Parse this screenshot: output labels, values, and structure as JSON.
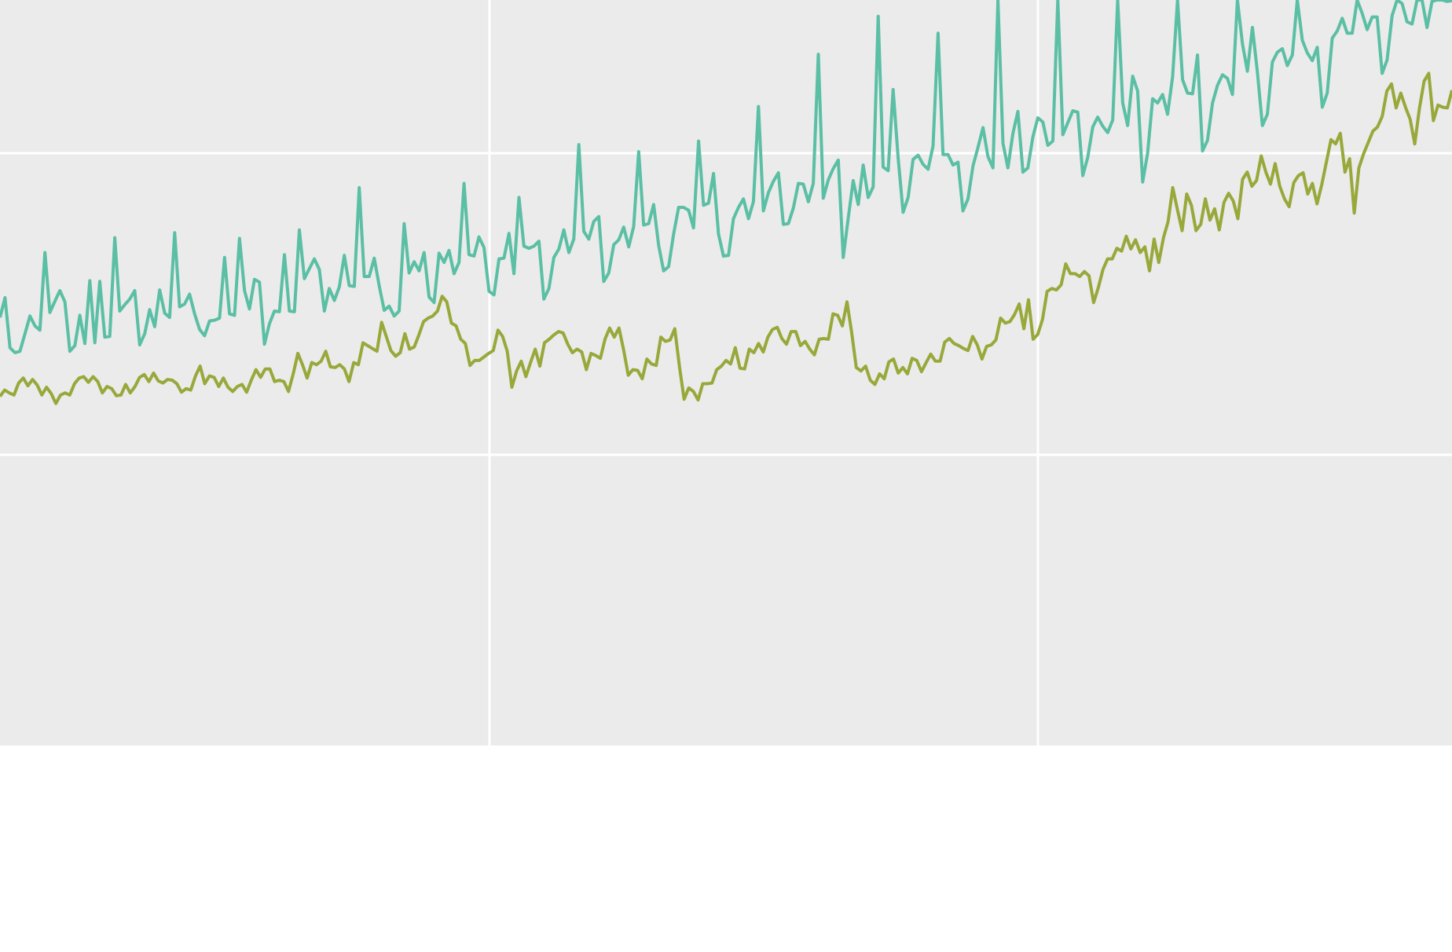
{
  "chart_data": {
    "type": "line",
    "title": "",
    "xlabel": "",
    "ylabel": "",
    "grid": true,
    "legend": "none",
    "x_range": [
      0,
      264
    ],
    "y_range": [
      0,
      100
    ],
    "background_color": "#EBEBEB",
    "gridline_color": "#FFFFFF",
    "series": [
      {
        "color": "#5ABFA4",
        "values": [
          55.0,
          57.8,
          50.7,
          50.0,
          50.2,
          52.7,
          55.2,
          53.8,
          53.2,
          64.2,
          55.7,
          57.3,
          58.8,
          57.2,
          50.2,
          51.0,
          55.3,
          51.3,
          60.2,
          51.4,
          60.1,
          52.2,
          52.3,
          66.3,
          55.9,
          56.8,
          57.6,
          58.8,
          51.1,
          52.7,
          56.1,
          53.7,
          58.9,
          55.6,
          55.0,
          67.0,
          56.5,
          56.9,
          58.3,
          55.5,
          53.3,
          52.4,
          54.5,
          54.6,
          54.9,
          63.5,
          55.5,
          55.3,
          66.2,
          58.8,
          56.2,
          60.4,
          60.0,
          51.2,
          54.1,
          55.9,
          55.8,
          63.9,
          55.9,
          55.8,
          67.4,
          60.5,
          61.9,
          63.3,
          61.8,
          55.9,
          59.1,
          57.4,
          59.3,
          63.8,
          59.5,
          59.4,
          73.4,
          60.8,
          60.8,
          63.4,
          59.5,
          56.0,
          56.6,
          55.2,
          55.9,
          68.3,
          61.3,
          62.9,
          61.6,
          64.2,
          57.9,
          57.1,
          64.1,
          62.8,
          64.5,
          61.2,
          62.8,
          74.0,
          63.9,
          63.7,
          66.4,
          64.9,
          58.7,
          58.2,
          63.3,
          63.4,
          66.9,
          61.2,
          72.0,
          65.1,
          64.8,
          65.1,
          65.8,
          57.6,
          59.1,
          63.5,
          64.7,
          67.4,
          64.2,
          66.1,
          79.5,
          67.2,
          66.1,
          68.6,
          69.3,
          60.1,
          61.3,
          65.3,
          66.0,
          67.8,
          65.0,
          67.9,
          78.5,
          68.1,
          68.3,
          71.0,
          65.2,
          61.6,
          62.2,
          66.8,
          70.6,
          70.6,
          70.2,
          67.7,
          80.0,
          70.9,
          71.2,
          75.4,
          66.8,
          63.7,
          63.8,
          69.0,
          70.6,
          71.8,
          69.0,
          71.4,
          84.9,
          70.1,
          72.7,
          74.3,
          75.5,
          68.2,
          68.3,
          70.5,
          74.0,
          73.9,
          71.4,
          74.0,
          92.3,
          71.9,
          74.5,
          76.1,
          77.3,
          63.5,
          69.1,
          74.4,
          71.0,
          76.6,
          72.0,
          73.5,
          97.7,
          76.3,
          75.8,
          87.3,
          77.6,
          69.9,
          72.0,
          77.4,
          78.0,
          76.7,
          76.0,
          79.3,
          95.3,
          78.1,
          78.1,
          76.6,
          77.0,
          70.1,
          71.8,
          76.5,
          79.1,
          81.9,
          77.8,
          76.2,
          100.0,
          79.7,
          76.2,
          81.1,
          84.2,
          75.6,
          76.2,
          80.6,
          83.3,
          82.7,
          79.4,
          80.0,
          100.0,
          80.9,
          82.6,
          84.3,
          84.1,
          75.1,
          77.7,
          82.0,
          83.4,
          82.1,
          81.2,
          83.0,
          100.0,
          85.4,
          82.2,
          89.2,
          87.1,
          74.2,
          78.3,
          86.0,
          85.4,
          86.6,
          83.8,
          89.1,
          100.0,
          88.7,
          86.8,
          86.7,
          92.2,
          78.6,
          80.1,
          85.4,
          87.9,
          89.4,
          88.9,
          86.6,
          100.0,
          93.8,
          89.9,
          96.1,
          89.8,
          82.2,
          83.8,
          91.2,
          92.6,
          93.1,
          90.7,
          92.2,
          100.0,
          94.3,
          92.5,
          91.4,
          93.3,
          84.8,
          86.8,
          94.6,
          95.6,
          97.4,
          95.3,
          95.3,
          100.0,
          98.1,
          95.8,
          97.6,
          97.6,
          89.6,
          91.5,
          97.8,
          100.0,
          99.5,
          96.9,
          96.6,
          100.0,
          100.0,
          96.1,
          99.8,
          100.0,
          100.0,
          99.8,
          99.9
        ]
      },
      {
        "color": "#98A83A",
        "values": [
          43.8,
          44.7,
          44.3,
          44.0,
          45.7,
          46.4,
          45.3,
          46.2,
          45.4,
          44.0,
          45.1,
          44.2,
          42.8,
          44.0,
          44.3,
          44.0,
          45.6,
          46.4,
          46.6,
          45.8,
          46.6,
          45.9,
          44.3,
          45.2,
          44.9,
          43.9,
          44.0,
          45.5,
          44.3,
          45.2,
          46.5,
          46.9,
          45.9,
          47.1,
          46.0,
          45.7,
          46.2,
          46.1,
          45.6,
          44.4,
          44.9,
          44.7,
          46.7,
          48.1,
          45.6,
          46.7,
          46.5,
          45.2,
          46.4,
          45.1,
          44.5,
          45.2,
          45.5,
          44.4,
          46.1,
          47.6,
          46.5,
          47.7,
          47.7,
          45.9,
          46.1,
          45.9,
          44.5,
          47.0,
          49.9,
          48.3,
          46.4,
          48.6,
          48.3,
          48.8,
          50.2,
          48.0,
          47.9,
          48.3,
          47.7,
          45.9,
          48.6,
          48.3,
          51.4,
          51.0,
          50.6,
          50.2,
          54.3,
          52.3,
          50.3,
          49.5,
          50.0,
          52.7,
          50.5,
          50.8,
          52.5,
          54.4,
          54.9,
          55.2,
          55.9,
          58.0,
          57.2,
          54.2,
          53.8,
          51.9,
          51.3,
          48.2,
          48.9,
          48.9,
          49.4,
          49.9,
          50.3,
          53.2,
          52.3,
          50.2,
          45.1,
          47.4,
          48.8,
          46.6,
          48.6,
          50.5,
          48.1,
          51.4,
          51.9,
          52.5,
          53.0,
          52.8,
          51.2,
          50.0,
          50.5,
          50.1,
          47.6,
          49.9,
          49.6,
          49.2,
          51.9,
          53.5,
          52.2,
          53.5,
          50.4,
          46.8,
          47.6,
          47.5,
          46.3,
          49.1,
          48.4,
          48.2,
          52.2,
          51.6,
          51.8,
          53.4,
          48.0,
          43.4,
          45.0,
          44.5,
          43.3,
          45.6,
          45.6,
          45.7,
          47.6,
          48.1,
          48.9,
          48.4,
          50.7,
          47.8,
          47.7,
          50.5,
          50.0,
          51.3,
          50.1,
          52.2,
          53.3,
          53.6,
          52.0,
          51.2,
          53.0,
          53.0,
          51.0,
          51.6,
          50.5,
          49.7,
          51.9,
          52.0,
          51.9,
          55.5,
          55.3,
          53.8,
          57.2,
          52.9,
          47.9,
          47.4,
          48.1,
          46.1,
          45.5,
          47.0,
          46.3,
          48.7,
          49.1,
          47.1,
          47.9,
          47.0,
          49.2,
          48.9,
          47.3,
          48.6,
          49.8,
          48.8,
          48.8,
          51.5,
          52.0,
          51.3,
          51.0,
          50.6,
          50.3,
          52.3,
          51.1,
          49.1,
          50.9,
          51.1,
          51.8,
          54.9,
          54.2,
          54.4,
          55.4,
          56.9,
          53.4,
          57.5,
          51.9,
          52.6,
          54.7,
          58.7,
          59.1,
          58.9,
          59.6,
          62.6,
          61.2,
          61.2,
          60.8,
          61.5,
          60.9,
          57.1,
          59.2,
          61.8,
          63.3,
          63.3,
          64.8,
          64.4,
          66.5,
          64.7,
          66.0,
          64.2,
          65.0,
          61.6,
          66.1,
          62.8,
          66.3,
          68.6,
          73.4,
          70.3,
          67.3,
          72.5,
          70.9,
          67.3,
          68.2,
          71.8,
          68.8,
          70.4,
          67.4,
          71.3,
          72.6,
          71.5,
          69.0,
          74.6,
          75.6,
          73.6,
          74.4,
          77.9,
          75.6,
          73.9,
          76.8,
          73.6,
          71.8,
          70.7,
          74.1,
          75.1,
          75.5,
          72.5,
          74.0,
          71.1,
          73.8,
          77.0,
          80.2,
          79.6,
          81.1,
          75.6,
          77.5,
          69.8,
          76.2,
          78.2,
          79.8,
          81.4,
          82.0,
          83.5,
          87.1,
          88.1,
          84.7,
          86.8,
          84.8,
          83.1,
          79.6,
          84.6,
          88.5,
          89.6,
          82.9,
          85.1,
          84.8,
          84.7,
          87.2
        ]
      }
    ]
  }
}
